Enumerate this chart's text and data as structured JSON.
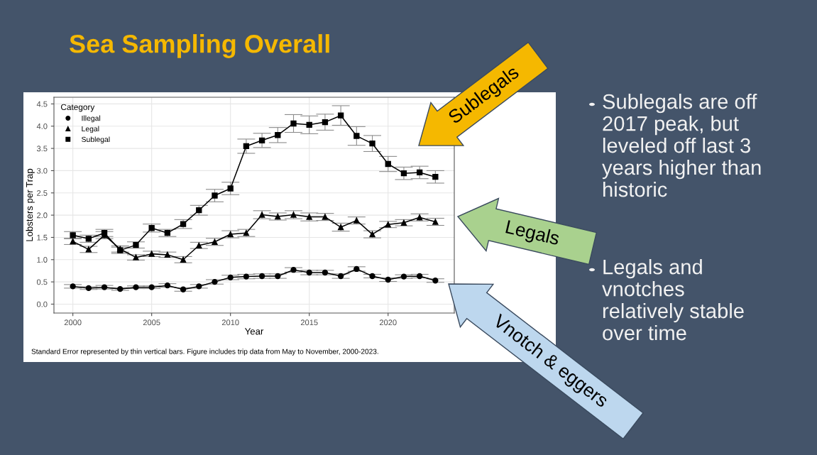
{
  "chart_data": {
    "type": "line",
    "title": "Sea Sampling Overall",
    "xlabel": "Year",
    "ylabel": "Lobsters per Trap",
    "legend_title": "Category",
    "x": [
      2000,
      2001,
      2002,
      2003,
      2004,
      2005,
      2006,
      2007,
      2008,
      2009,
      2010,
      2011,
      2012,
      2013,
      2014,
      2015,
      2016,
      2017,
      2018,
      2019,
      2020,
      2021,
      2022,
      2023
    ],
    "series": [
      {
        "name": "Illegal",
        "color": "#000000",
        "marker": "circle",
        "values": [
          0.4,
          0.36,
          0.38,
          0.34,
          0.38,
          0.38,
          0.42,
          0.33,
          0.4,
          0.5,
          0.6,
          0.62,
          0.63,
          0.63,
          0.77,
          0.71,
          0.71,
          0.63,
          0.79,
          0.63,
          0.55,
          0.62,
          0.63,
          0.53
        ],
        "errors": [
          0.04,
          0.03,
          0.04,
          0.03,
          0.03,
          0.03,
          0.04,
          0.04,
          0.04,
          0.05,
          0.05,
          0.05,
          0.05,
          0.05,
          0.05,
          0.05,
          0.05,
          0.05,
          0.05,
          0.04,
          0.04,
          0.04,
          0.04,
          0.04
        ]
      },
      {
        "name": "Legal",
        "color": "#000000",
        "marker": "triangle",
        "values": [
          1.41,
          1.23,
          1.55,
          1.24,
          1.05,
          1.13,
          1.11,
          1.0,
          1.32,
          1.4,
          1.57,
          1.6,
          2.01,
          1.97,
          2.01,
          1.96,
          1.96,
          1.73,
          1.88,
          1.57,
          1.79,
          1.83,
          1.95,
          1.85
        ],
        "errors": [
          0.07,
          0.07,
          0.08,
          0.07,
          0.06,
          0.06,
          0.06,
          0.07,
          0.07,
          0.08,
          0.08,
          0.08,
          0.09,
          0.08,
          0.09,
          0.09,
          0.08,
          0.09,
          0.08,
          0.08,
          0.07,
          0.07,
          0.08,
          0.08
        ]
      },
      {
        "name": "Sublegal",
        "color": "#000000",
        "marker": "square",
        "values": [
          1.55,
          1.47,
          1.6,
          1.21,
          1.33,
          1.71,
          1.6,
          1.8,
          2.11,
          2.44,
          2.6,
          3.55,
          3.68,
          3.8,
          4.06,
          4.03,
          4.09,
          4.24,
          3.78,
          3.61,
          3.15,
          2.94,
          2.96,
          2.86
        ],
        "errors": [
          0.08,
          0.08,
          0.08,
          0.07,
          0.07,
          0.09,
          0.08,
          0.1,
          0.11,
          0.14,
          0.14,
          0.16,
          0.16,
          0.17,
          0.2,
          0.2,
          0.18,
          0.22,
          0.21,
          0.18,
          0.17,
          0.14,
          0.14,
          0.14
        ]
      }
    ],
    "xlim": [
      1998.8,
      2024.2
    ],
    "xticks": [
      2000,
      2005,
      2010,
      2015,
      2020
    ],
    "ylim": [
      -0.2,
      4.65
    ],
    "yticks": [
      {
        "value": 0,
        "label": "0.0"
      },
      0.5,
      {
        "value": 1,
        "label": "1.0"
      },
      1.5,
      {
        "value": 2,
        "label": "2.0"
      },
      2.5,
      {
        "value": 3,
        "label": "3.0"
      },
      3.5,
      {
        "value": 4,
        "label": "4.0"
      },
      4.5
    ],
    "grid": true,
    "legend": "top left",
    "line_style": "solid",
    "annotations": [
      "Standard Error represented by thin vertical bars. Figure includes trip data from May to November, 2000-2023.",
      "Sublegals",
      "Legals",
      "Vnotch & eggers",
      "Sublegals are off\n2017 peak, but\nleveled off last 3\nyears higher than\nhistoric",
      "Legals and\nvnotches\nrelatively stable\nover time"
    ]
  }
}
